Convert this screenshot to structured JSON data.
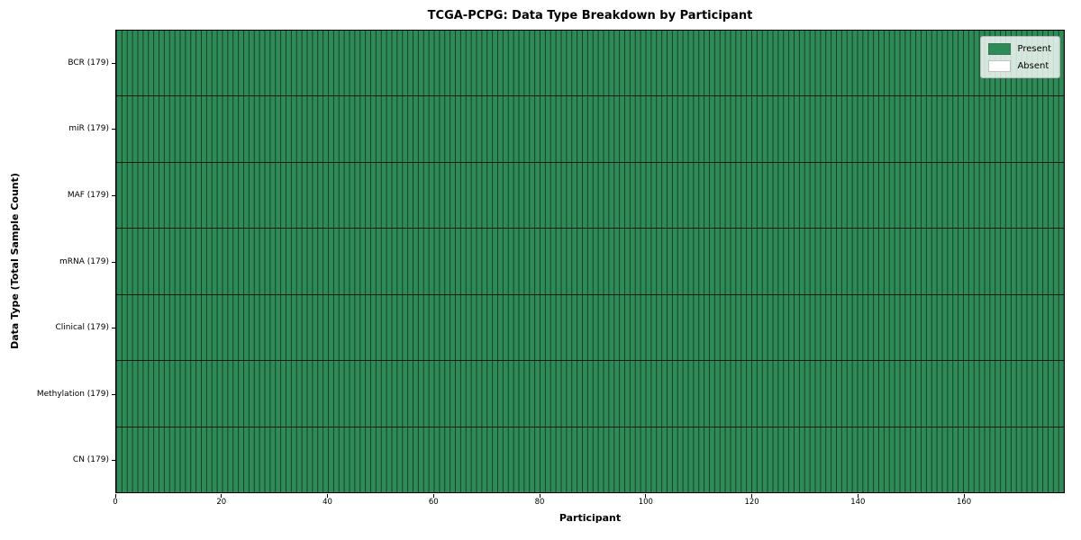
{
  "chart_data": {
    "type": "heatmap",
    "title": "TCGA-PCPG: Data Type Breakdown by Participant",
    "xlabel": "Participant",
    "ylabel": "Data Type (Total Sample Count)",
    "x_range": [
      0,
      179
    ],
    "x_ticks": [
      0,
      20,
      40,
      60,
      80,
      100,
      120,
      140,
      160
    ],
    "n_participants": 179,
    "rows": [
      {
        "label": "BCR (179)",
        "data_type": "BCR",
        "total_samples": 179,
        "present": 179,
        "absent": 0
      },
      {
        "label": "miR (179)",
        "data_type": "miR",
        "total_samples": 179,
        "present": 179,
        "absent": 0
      },
      {
        "label": "MAF (179)",
        "data_type": "MAF",
        "total_samples": 179,
        "present": 179,
        "absent": 0
      },
      {
        "label": "mRNA (179)",
        "data_type": "mRNA",
        "total_samples": 179,
        "present": 179,
        "absent": 0
      },
      {
        "label": "Clinical (179)",
        "data_type": "Clinical",
        "total_samples": 179,
        "present": 179,
        "absent": 0
      },
      {
        "label": "Methylation (179)",
        "data_type": "Methylation",
        "total_samples": 179,
        "present": 179,
        "absent": 0
      },
      {
        "label": "CN (179)",
        "data_type": "CN",
        "total_samples": 179,
        "present": 179,
        "absent": 0
      }
    ],
    "legend": {
      "position": "upper right",
      "entries": [
        {
          "label": "Present",
          "color": "#2e8b57"
        },
        {
          "label": "Absent",
          "color": "#ffffff"
        }
      ]
    },
    "colors": {
      "present": "#2e8b57",
      "absent": "#ffffff",
      "cell_edge": "rgba(0,0,0,0.55)",
      "row_divider": "rgba(0,0,0,0.8)"
    },
    "grid": false
  }
}
